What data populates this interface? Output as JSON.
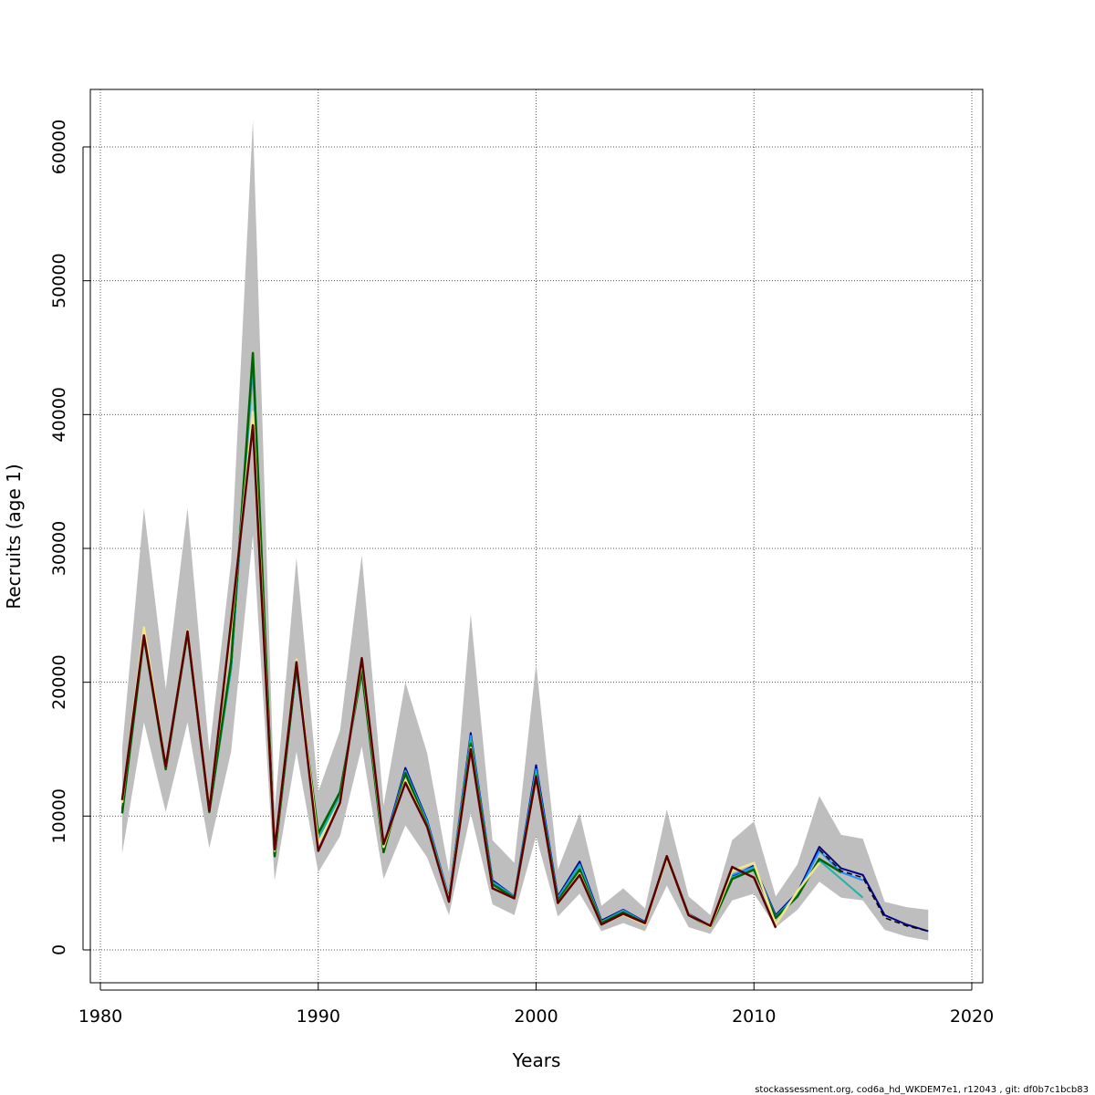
{
  "chart_data": {
    "type": "line",
    "title": "",
    "xlabel": "Years",
    "ylabel": "Recruits (age 1)",
    "xlim": [
      1980,
      2020
    ],
    "ylim": [
      0,
      60000
    ],
    "xticks": [
      1980,
      1990,
      2000,
      2010,
      2020
    ],
    "yticks": [
      0,
      10000,
      20000,
      30000,
      40000,
      50000,
      60000
    ],
    "xtick_labels": [
      "1980",
      "1990",
      "2000",
      "2010",
      "2020"
    ],
    "ytick_labels": [
      "0",
      "10000",
      "20000",
      "30000",
      "40000",
      "50000",
      "60000"
    ],
    "grid": true,
    "footer": "stockassessment.org, cod6a_hd_WKDEM7e1, r12043 , git: df0b7c1bcb83",
    "confidence_band": {
      "color": "#bebebe",
      "x": [
        1981,
        1982,
        1983,
        1984,
        1985,
        1986,
        1987,
        1988,
        1989,
        1990,
        1991,
        1992,
        1993,
        1994,
        1995,
        1996,
        1997,
        1998,
        1999,
        2000,
        2001,
        2002,
        2003,
        2004,
        2005,
        2006,
        2007,
        2008,
        2009,
        2010,
        2011,
        2012,
        2013,
        2014,
        2015,
        2016,
        2017,
        2018
      ],
      "upper": [
        15000,
        33000,
        19500,
        33000,
        14800,
        29000,
        62000,
        10500,
        29300,
        11800,
        16400,
        29500,
        10800,
        20000,
        14700,
        5800,
        25100,
        8200,
        6500,
        21400,
        6000,
        10200,
        3300,
        4600,
        3100,
        10500,
        4000,
        2600,
        8200,
        9600,
        4000,
        6400,
        11500,
        8600,
        8300,
        3600,
        3200,
        3000
      ],
      "lower": [
        7200,
        17000,
        10300,
        17000,
        7600,
        14800,
        31000,
        5200,
        14800,
        5800,
        8500,
        15200,
        5300,
        9300,
        6900,
        2600,
        10200,
        3400,
        2600,
        8500,
        2500,
        4200,
        1400,
        2000,
        1400,
        4800,
        1700,
        1200,
        3700,
        4200,
        1700,
        3000,
        5100,
        3900,
        3700,
        1500,
        1000,
        700
      ]
    },
    "series": [
      {
        "color": "#00008b",
        "width": 2,
        "x": [
          1981,
          1982,
          1983,
          1984,
          1985,
          1986,
          1987,
          1988,
          1989,
          1990,
          1991,
          1992,
          1993,
          1994,
          1995,
          1996,
          1997,
          1998,
          1999,
          2000,
          2001,
          2002,
          2003,
          2004,
          2005,
          2006,
          2007,
          2008,
          2009,
          2010,
          2011,
          2012,
          2013,
          2014,
          2015,
          2016,
          2017,
          2018
        ],
        "values": [
          10500,
          23500,
          13800,
          23800,
          10500,
          21000,
          44000,
          7300,
          21000,
          8300,
          11600,
          21000,
          7700,
          13600,
          9700,
          3900,
          16200,
          5200,
          4000,
          13800,
          4000,
          6600,
          2200,
          3000,
          2100,
          7000,
          2700,
          1800,
          5500,
          6300,
          2600,
          4300,
          7700,
          6100,
          5600,
          2600,
          1900,
          1400
        ]
      },
      {
        "color": "#1e90ff",
        "width": 2,
        "x": [
          1981,
          1982,
          1983,
          1984,
          1985,
          1986,
          1987,
          1988,
          1989,
          1990,
          1991,
          1992,
          1993,
          1994,
          1995,
          1996,
          1997,
          1998,
          1999,
          2000,
          2001,
          2002,
          2003,
          2004,
          2005,
          2006,
          2007,
          2008,
          2009,
          2010,
          2011,
          2012,
          2013,
          2014,
          2015
        ],
        "values": [
          10400,
          23600,
          13700,
          23700,
          10400,
          21000,
          43500,
          7200,
          21000,
          8300,
          11500,
          21000,
          7600,
          13400,
          9600,
          3850,
          16000,
          5100,
          4000,
          13500,
          3900,
          6400,
          2100,
          2950,
          2050,
          7000,
          2650,
          1800,
          5600,
          6200,
          2500,
          4200,
          7400,
          5800,
          5200
        ]
      },
      {
        "color": "#20b2aa",
        "width": 2,
        "x": [
          1981,
          1982,
          1983,
          1984,
          1985,
          1986,
          1987,
          1988,
          1989,
          1990,
          1991,
          1992,
          1993,
          1994,
          1995,
          1996,
          1997,
          1998,
          1999,
          2000,
          2001,
          2002,
          2003,
          2004,
          2005,
          2006,
          2007,
          2008,
          2009,
          2010,
          2011,
          2012,
          2013,
          2014,
          2015
        ],
        "values": [
          10300,
          23700,
          13600,
          23600,
          10300,
          21000,
          43800,
          7100,
          21000,
          8400,
          11500,
          20900,
          7500,
          13300,
          9500,
          3800,
          15800,
          5000,
          3950,
          13300,
          3800,
          6300,
          2100,
          2900,
          2000,
          7000,
          2600,
          1750,
          5400,
          6100,
          2400,
          4100,
          6700,
          5300,
          3900
        ]
      },
      {
        "color": "#006400",
        "width": 2.5,
        "x": [
          1981,
          1982,
          1983,
          1984,
          1985,
          1986,
          1987,
          1988,
          1989,
          1990,
          1991,
          1992,
          1993,
          1994,
          1995,
          1996,
          1997,
          1998,
          1999,
          2000,
          2001,
          2002,
          2003,
          2004,
          2005,
          2006,
          2007,
          2008,
          2009,
          2010,
          2011,
          2012,
          2013,
          2014
        ],
        "values": [
          10200,
          23400,
          13500,
          23700,
          10300,
          21500,
          44600,
          7000,
          21200,
          8700,
          11800,
          20800,
          7300,
          13200,
          9300,
          3700,
          15400,
          4900,
          3900,
          13000,
          3700,
          6000,
          2000,
          2800,
          2000,
          7000,
          2600,
          1700,
          5300,
          6000,
          2400,
          4000,
          6800,
          5800
        ]
      },
      {
        "color": "#f0e68c",
        "width": 2.5,
        "x": [
          1981,
          1982,
          1983,
          1984,
          1985,
          1986,
          1987,
          1988,
          1989,
          1990,
          1991,
          1992,
          1993,
          1994,
          1995,
          1996,
          1997,
          1998,
          1999,
          2000,
          2001,
          2002,
          2003,
          2004,
          2005,
          2006,
          2007,
          2008,
          2009,
          2010,
          2011,
          2012,
          2013
        ],
        "values": [
          11000,
          24100,
          13700,
          23900,
          10500,
          24000,
          40200,
          7400,
          21700,
          8000,
          11100,
          21600,
          7700,
          12700,
          9200,
          3700,
          15100,
          4600,
          3850,
          12800,
          3500,
          5700,
          1900,
          2650,
          1900,
          6900,
          2650,
          1700,
          5900,
          6500,
          1900,
          4400,
          6500
        ]
      },
      {
        "color": "#5c0000",
        "width": 2.5,
        "x": [
          1981,
          1982,
          1983,
          1984,
          1985,
          1986,
          1987,
          1988,
          1989,
          1990,
          1991,
          1992,
          1993,
          1994,
          1995,
          1996,
          1997,
          1998,
          1999,
          2000,
          2001,
          2002,
          2003,
          2004,
          2005,
          2006,
          2007,
          2008,
          2009,
          2010,
          2011
        ],
        "values": [
          11200,
          23500,
          13700,
          23800,
          10400,
          24500,
          39200,
          7500,
          21500,
          7400,
          11000,
          21800,
          7900,
          12500,
          9200,
          3600,
          15000,
          4600,
          3850,
          12900,
          3500,
          5600,
          1900,
          2700,
          2000,
          7000,
          2600,
          1800,
          6200,
          5400,
          1650
        ]
      },
      {
        "color": "#000000",
        "width": 1.5,
        "dash": "6,4",
        "x": [
          2013,
          2014,
          2015,
          2016,
          2017,
          2018
        ],
        "values": [
          7500,
          5900,
          5400,
          2400,
          1800,
          1400
        ]
      }
    ]
  }
}
